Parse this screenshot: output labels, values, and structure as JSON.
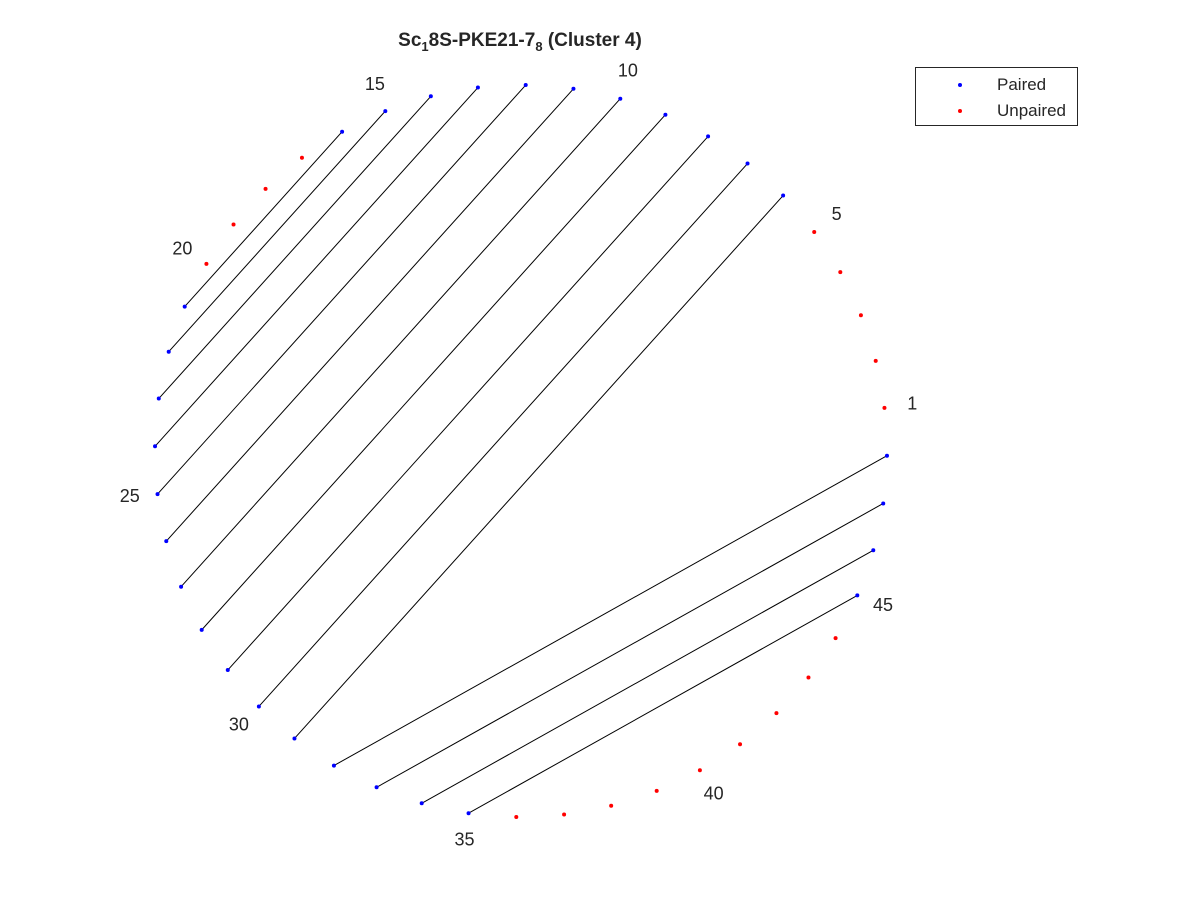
{
  "title": {
    "prefix": "Sc",
    "sub1": "1",
    "middle": "8S-PKE21-7",
    "sub2": "8",
    "suffix": " (Cluster 4)"
  },
  "legend": {
    "entries": [
      {
        "label": "Paired",
        "color": "#0000ff"
      },
      {
        "label": "Unpaired",
        "color": "#ff0000"
      }
    ]
  },
  "chart_data": {
    "type": "arc-diagram",
    "n_nucleotides": 48,
    "position_labels": [
      "1",
      "5",
      "10",
      "15",
      "20",
      "25",
      "30",
      "35",
      "40",
      "45"
    ],
    "labeled_positions": [
      1,
      5,
      10,
      15,
      20,
      25,
      30,
      35,
      40,
      45
    ],
    "pairs": [
      [
        6,
        31
      ],
      [
        7,
        30
      ],
      [
        8,
        29
      ],
      [
        9,
        28
      ],
      [
        10,
        27
      ],
      [
        11,
        26
      ],
      [
        12,
        25
      ],
      [
        13,
        24
      ],
      [
        14,
        23
      ],
      [
        15,
        22
      ],
      [
        16,
        21
      ],
      [
        32,
        48
      ],
      [
        33,
        47
      ],
      [
        34,
        46
      ],
      [
        35,
        45
      ]
    ],
    "unpaired": [
      1,
      2,
      3,
      4,
      5,
      17,
      18,
      19,
      20,
      36,
      37,
      38,
      39,
      40,
      41,
      42,
      43,
      44
    ],
    "colors": {
      "paired": "#0000ff",
      "unpaired": "#ff0000",
      "link": "#000000"
    }
  }
}
